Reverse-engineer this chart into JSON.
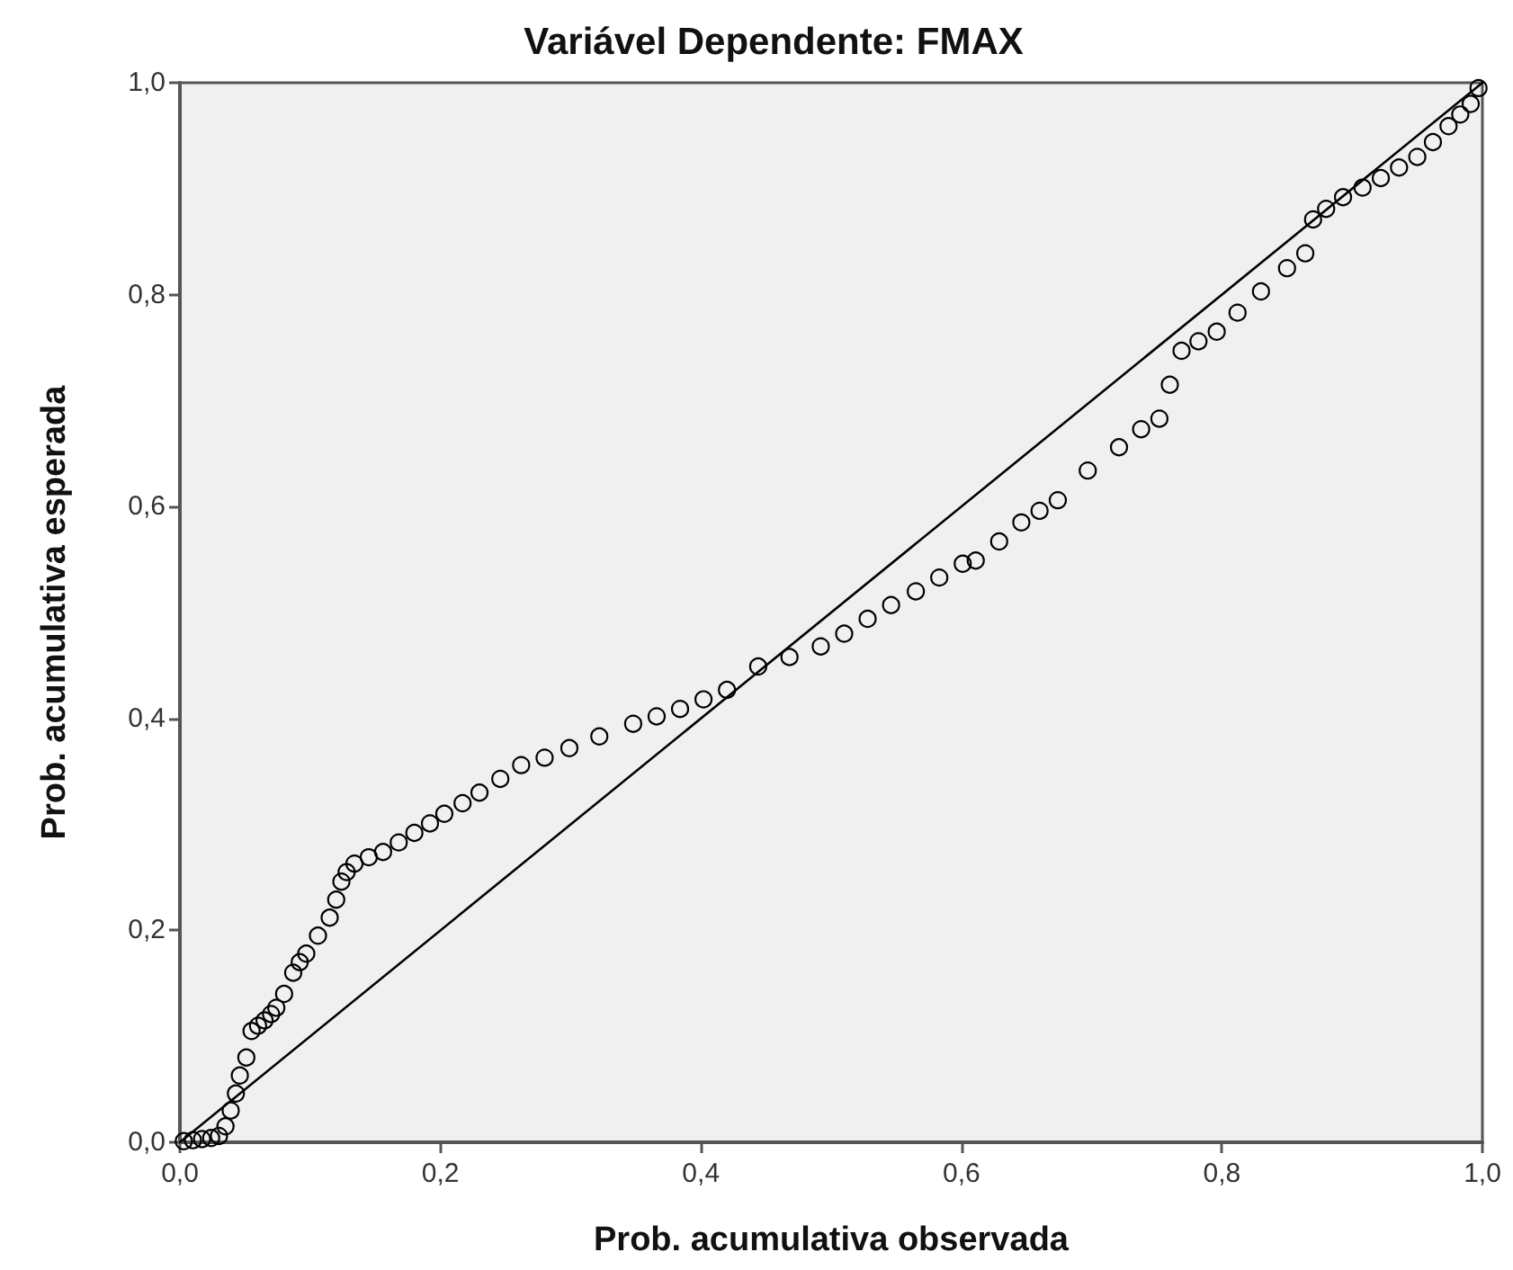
{
  "chart_data": {
    "type": "scatter",
    "title": "Variável Dependente: FMAX",
    "xlabel": "Prob. acumulativa observada",
    "ylabel": "Prob. acumulativa esperada",
    "xlim": [
      0,
      1
    ],
    "ylim": [
      0,
      1
    ],
    "xticks": [
      {
        "value": 0,
        "label": "0,0"
      },
      {
        "value": 0.2,
        "label": "0,2"
      },
      {
        "value": 0.4,
        "label": "0,4"
      },
      {
        "value": 0.6,
        "label": "0,6"
      },
      {
        "value": 0.8,
        "label": "0,8"
      },
      {
        "value": 1,
        "label": "1,0"
      }
    ],
    "yticks": [
      {
        "value": 0,
        "label": "0,0"
      },
      {
        "value": 0.2,
        "label": "0,2"
      },
      {
        "value": 0.4,
        "label": "0,4"
      },
      {
        "value": 0.6,
        "label": "0,6"
      },
      {
        "value": 0.8,
        "label": "0,8"
      },
      {
        "value": 1,
        "label": "1,0"
      }
    ],
    "grid": false,
    "marker": "circle",
    "series": [
      {
        "color": "#000000",
        "x": [
          0.003,
          0.01,
          0.017,
          0.024,
          0.03,
          0.035,
          0.039,
          0.043,
          0.046,
          0.051,
          0.055,
          0.06,
          0.065,
          0.07,
          0.074,
          0.08,
          0.087,
          0.092,
          0.097,
          0.106,
          0.115,
          0.12,
          0.124,
          0.128,
          0.134,
          0.145,
          0.156,
          0.168,
          0.18,
          0.192,
          0.203,
          0.217,
          0.23,
          0.246,
          0.262,
          0.28,
          0.299,
          0.322,
          0.348,
          0.366,
          0.384,
          0.402,
          0.42,
          0.444,
          0.468,
          0.492,
          0.51,
          0.528,
          0.546,
          0.565,
          0.583,
          0.601,
          0.611,
          0.629,
          0.646,
          0.66,
          0.674,
          0.697,
          0.721,
          0.738,
          0.752,
          0.76,
          0.769,
          0.782,
          0.796,
          0.812,
          0.83,
          0.85,
          0.864,
          0.87,
          0.88,
          0.893,
          0.908,
          0.922,
          0.936,
          0.95,
          0.962,
          0.974,
          0.983,
          0.991,
          0.997
        ],
        "values": [
          0.001,
          0.002,
          0.003,
          0.004,
          0.006,
          0.015,
          0.03,
          0.046,
          0.063,
          0.08,
          0.105,
          0.11,
          0.115,
          0.121,
          0.127,
          0.14,
          0.16,
          0.17,
          0.178,
          0.195,
          0.212,
          0.229,
          0.246,
          0.255,
          0.263,
          0.269,
          0.274,
          0.283,
          0.292,
          0.301,
          0.31,
          0.32,
          0.33,
          0.343,
          0.356,
          0.363,
          0.372,
          0.383,
          0.395,
          0.402,
          0.409,
          0.418,
          0.427,
          0.449,
          0.458,
          0.468,
          0.48,
          0.494,
          0.507,
          0.52,
          0.533,
          0.546,
          0.549,
          0.567,
          0.585,
          0.596,
          0.606,
          0.634,
          0.656,
          0.673,
          0.683,
          0.715,
          0.747,
          0.756,
          0.765,
          0.783,
          0.803,
          0.825,
          0.839,
          0.871,
          0.881,
          0.892,
          0.901,
          0.91,
          0.92,
          0.93,
          0.944,
          0.959,
          0.97,
          0.98,
          0.995
        ]
      },
      {
        "type": "line",
        "color": "#000000",
        "marker": "none",
        "x": [
          0,
          1
        ],
        "values": [
          0,
          1
        ]
      }
    ]
  }
}
